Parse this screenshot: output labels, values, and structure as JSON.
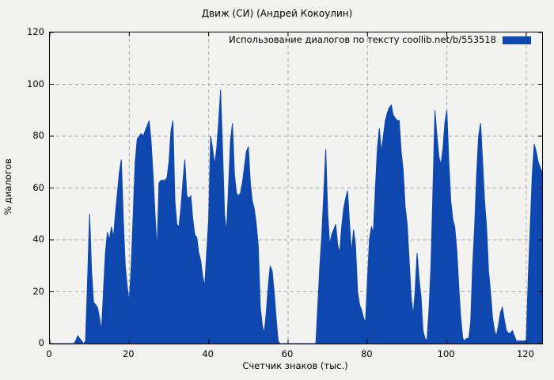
{
  "page": {
    "title": "Движ (СИ) (Андрей Кокоулин)"
  },
  "chart_data": {
    "type": "area",
    "title": "Движ (СИ) (Андрей Кокоулин)",
    "legend": "Использование диалогов по тексту  coollib.net/b/553518",
    "xlabel": "Счетчик знаков (тыс.)",
    "ylabel": "% диалогов",
    "xlim": [
      0,
      124
    ],
    "ylim": [
      0,
      120
    ],
    "xticks": [
      0,
      20,
      40,
      60,
      80,
      100,
      120
    ],
    "yticks": [
      0,
      20,
      40,
      60,
      80,
      100,
      120
    ],
    "grid": "dashed",
    "legend_position": "top-right",
    "fill_color": "#0e47ae",
    "grid_color": "#a8a8a8",
    "frame_color": "#000000",
    "background": "#f0f0ee",
    "x_start": 0,
    "x_step": 0.5,
    "values": [
      0,
      0,
      0,
      0,
      0,
      0,
      0,
      0,
      0,
      0,
      0,
      0,
      0,
      1,
      3,
      2,
      1,
      0,
      1,
      25,
      50,
      28,
      16,
      15,
      14,
      10,
      5,
      20,
      35,
      43,
      40,
      45,
      41,
      50,
      58,
      66,
      71,
      48,
      30,
      22,
      16,
      30,
      50,
      70,
      79,
      80,
      81,
      80,
      82,
      84,
      86,
      78,
      65,
      50,
      36,
      62,
      63,
      63,
      63,
      64,
      70,
      82,
      86,
      55,
      46,
      45,
      52,
      62,
      71,
      57,
      56,
      57,
      48,
      42,
      41,
      35,
      32,
      26,
      22,
      35,
      48,
      80,
      75,
      69,
      75,
      85,
      98,
      75,
      50,
      43,
      60,
      78,
      85,
      65,
      58,
      57,
      58,
      62,
      68,
      74,
      76,
      62,
      55,
      52,
      46,
      38,
      14,
      7,
      4,
      12,
      22,
      30,
      28,
      20,
      10,
      1,
      0,
      0,
      0,
      0,
      0,
      0,
      0,
      0,
      0,
      0,
      0,
      0,
      0,
      0,
      0,
      0,
      0,
      0,
      0,
      15,
      30,
      42,
      58,
      75,
      50,
      38,
      42,
      44,
      46,
      38,
      35,
      45,
      52,
      56,
      59,
      46,
      35,
      44,
      38,
      20,
      15,
      13,
      10,
      8,
      25,
      40,
      45,
      43,
      60,
      75,
      83,
      74,
      80,
      86,
      89,
      91,
      92,
      88,
      87,
      86,
      86,
      74,
      67,
      53,
      46,
      32,
      18,
      11,
      20,
      35,
      25,
      18,
      5,
      2,
      1,
      13,
      30,
      60,
      90,
      80,
      72,
      69,
      75,
      85,
      90,
      70,
      55,
      48,
      45,
      36,
      22,
      10,
      2,
      1,
      2,
      2,
      8,
      30,
      45,
      65,
      80,
      85,
      70,
      55,
      45,
      28,
      20,
      10,
      5,
      3,
      7,
      12,
      14,
      9,
      5,
      4,
      4,
      5,
      3,
      1,
      1,
      1,
      1,
      1,
      1,
      25,
      45,
      65,
      77,
      74,
      70,
      68,
      66
    ]
  }
}
